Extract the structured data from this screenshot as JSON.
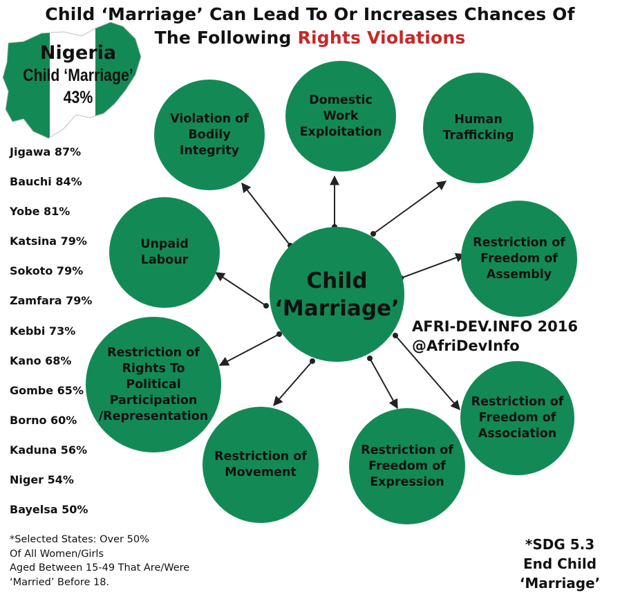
{
  "title": {
    "line1": "Child ‘Marriage’ Can Lead To Or Increases Chances Of",
    "line2_prefix": "The Following ",
    "line2_accent": "Rights Violations"
  },
  "map": {
    "country": "Nigeria",
    "subtitle": "Child ‘Marriage’",
    "rate": "43%"
  },
  "states": [
    "Jigawa 87%",
    "Bauchi 84%",
    "Yobe 81%",
    "Katsina 79%",
    "Sokoto 79%",
    "Zamfara 79%",
    "Kebbi 73%",
    "Kano 68%",
    "Gombe 65%",
    "Borno 60%",
    "Kaduna 56%",
    "Niger 54%",
    "Bayelsa 50%"
  ],
  "footnote": [
    "*Selected States: Over 50%",
    "Of All Women/Girls",
    "Aged Between 15-49 That Are/Were",
    "‘Married’ Before 18."
  ],
  "sdg": [
    "*SDG 5.3",
    "End Child",
    "‘Marriage’"
  ],
  "credit": [
    "AFRI-DEV.INFO 2016",
    "@AfriDevInfo"
  ],
  "center": [
    "Child",
    "‘Marriage’"
  ],
  "violations": [
    [
      "Violation of",
      "Bodily",
      "Integrity"
    ],
    [
      "Domestic",
      "Work",
      "Exploitation"
    ],
    [
      "Human",
      "Trafficking"
    ],
    [
      "Unpaid",
      "Labour"
    ],
    [
      "Restriction of",
      "Freedom of",
      "Assembly"
    ],
    [
      "Restriction of",
      "Rights To",
      "Political",
      "Participation",
      "/Representation"
    ],
    [
      "Restriction of",
      "Freedom of",
      "Association"
    ],
    [
      "Restriction of",
      "Movement"
    ],
    [
      "Restriction of",
      "Freedom of",
      "Expression"
    ]
  ],
  "colors": {
    "node_fill": "#138a55",
    "accent": "#c62828",
    "map_green": "#138a55"
  }
}
